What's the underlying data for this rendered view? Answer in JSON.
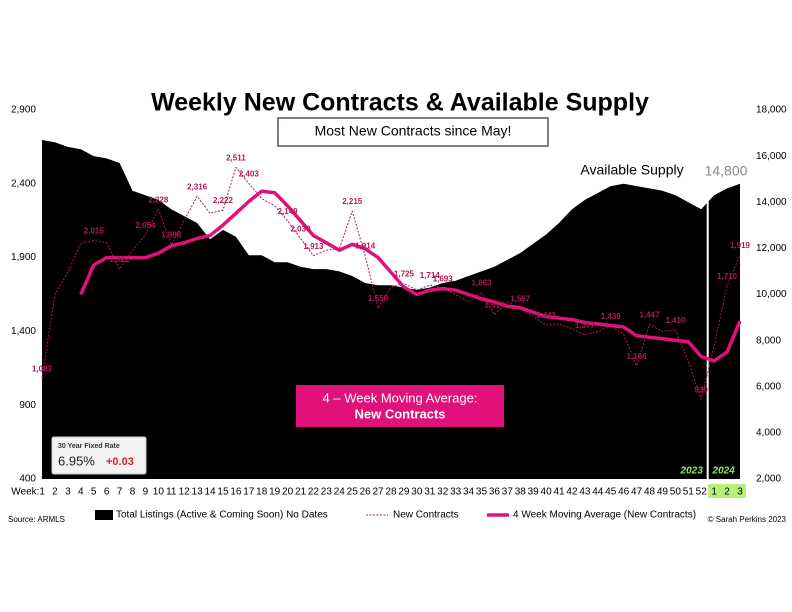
{
  "chart_data": {
    "type": "combo",
    "title": "Weekly New Contracts & Available Supply",
    "subtitle": "Most New Contracts since May!",
    "supply_label": "Available Supply",
    "ma_note": [
      "4 – Week Moving Average:",
      "New Contracts"
    ],
    "rate_box": {
      "title": "30 Year Fixed Rate",
      "rate": "6.95%",
      "change": "+0.03"
    },
    "year_labels": [
      "2023",
      "2024"
    ],
    "source": "Source: ARMLS",
    "credit": "© Sarah Perkins 2023",
    "categories": [
      "Week:1",
      "2",
      "3",
      "4",
      "5",
      "6",
      "7",
      "8",
      "9",
      "10",
      "11",
      "12",
      "13",
      "14",
      "15",
      "16",
      "17",
      "18",
      "19",
      "20",
      "21",
      "22",
      "23",
      "24",
      "25",
      "26",
      "27",
      "28",
      "29",
      "30",
      "31",
      "32",
      "33",
      "34",
      "35",
      "36",
      "37",
      "38",
      "39",
      "40",
      "41",
      "42",
      "43",
      "44",
      "45",
      "46",
      "47",
      "48",
      "49",
      "50",
      "51",
      "52",
      "1",
      "2",
      "3"
    ],
    "ylim": [
      400,
      2900
    ],
    "yticks": [
      400,
      900,
      {
        "value": 1400,
        "label": "1,400"
      },
      {
        "value": 1900,
        "label": "1,900"
      },
      {
        "value": 2400,
        "label": "2,400"
      },
      {
        "value": 2900,
        "label": "2,900"
      }
    ],
    "y2lim": [
      2000,
      18000
    ],
    "y2ticks": [
      {
        "value": 2000,
        "label": "2,000"
      },
      {
        "value": 4000,
        "label": "4,000"
      },
      {
        "value": 6000,
        "label": "6,000"
      },
      {
        "value": 8000,
        "label": "8,000"
      },
      {
        "value": 10000,
        "label": "10,000"
      },
      {
        "value": 12000,
        "label": "12,000"
      },
      {
        "value": 14000,
        "label": "14,000"
      },
      {
        "value": 16000,
        "label": "16,000"
      },
      {
        "value": 18000,
        "label": "18,000"
      }
    ],
    "series": [
      {
        "name": "Total Listings (Active & Coming Soon) No Dates",
        "type": "area",
        "axis": "y2",
        "color": "#000000",
        "values": [
          16700,
          16600,
          16400,
          16300,
          16000,
          15900,
          15700,
          14500,
          14300,
          14100,
          13700,
          13400,
          13100,
          12400,
          12800,
          12500,
          11700,
          11700,
          11400,
          11400,
          11200,
          11100,
          11100,
          11000,
          10800,
          10500,
          10400,
          10400,
          10300,
          10200,
          10300,
          10500,
          10600,
          10800,
          11000,
          11200,
          11500,
          11800,
          12200,
          12600,
          13100,
          13700,
          14100,
          14400,
          14700,
          14800,
          14700,
          14600,
          14500,
          14300,
          14000,
          13700,
          14300,
          14600,
          14800
        ],
        "value_labels": [
          null,
          null,
          null,
          null,
          null,
          null,
          null,
          null,
          null,
          null,
          null,
          null,
          null,
          null,
          null,
          null,
          null,
          null,
          null,
          null,
          null,
          null,
          null,
          null,
          null,
          null,
          null,
          null,
          null,
          null,
          null,
          null,
          null,
          null,
          null,
          null,
          null,
          null,
          null,
          null,
          null,
          null,
          null,
          null,
          null,
          null,
          null,
          null,
          null,
          null,
          null,
          null,
          null,
          null,
          "14,800"
        ]
      },
      {
        "name": "New Contracts",
        "type": "line",
        "style": "dotted",
        "color": "#b0175a",
        "values": [
          1083,
          1650,
          1800,
          2000,
          2015,
          2000,
          1822,
          1950,
          2054,
          2228,
          1988,
          2150,
          2316,
          2200,
          2222,
          2511,
          2403,
          2300,
          2250,
          2149,
          2030,
          1913,
          1950,
          1960,
          2215,
          1914,
          1558,
          1700,
          1725,
          1680,
          1714,
          1693,
          1650,
          1600,
          1663,
          1514,
          1600,
          1557,
          1500,
          1443,
          1450,
          1420,
          1377,
          1400,
          1439,
          1380,
          1166,
          1447,
          1400,
          1410,
          1200,
          939,
          1300,
          1710,
          1919
        ],
        "value_labels": [
          "1,083",
          null,
          null,
          null,
          "2,015",
          null,
          "1,822",
          null,
          "2,054",
          "2,228",
          "1,988",
          null,
          "2,316",
          null,
          "2,222",
          "2,511",
          "2,403",
          null,
          null,
          "2,149",
          "2,030",
          "1,913",
          null,
          null,
          "2,215",
          "1,914",
          "1,558",
          null,
          "1,725",
          null,
          "1,714",
          "1,693",
          null,
          null,
          "1,663",
          "1,514",
          null,
          "1,557",
          null,
          "1,443",
          null,
          null,
          "1,377",
          null,
          "1,439",
          null,
          "1,166",
          "1,447",
          null,
          "1,410",
          null,
          "939",
          null,
          "1,710",
          "1,919"
        ]
      },
      {
        "name": "4 Week Moving Average (New Contracts)",
        "type": "line",
        "style": "solid",
        "color": "#e0117a",
        "values": [
          null,
          null,
          null,
          1650,
          1850,
          1900,
          1900,
          1900,
          1900,
          1930,
          1980,
          2000,
          2030,
          2050,
          2120,
          2200,
          2280,
          2350,
          2340,
          2250,
          2150,
          2050,
          2000,
          1950,
          1990,
          1960,
          1900,
          1800,
          1700,
          1650,
          1680,
          1690,
          1680,
          1650,
          1620,
          1600,
          1570,
          1560,
          1530,
          1500,
          1490,
          1480,
          1460,
          1450,
          1440,
          1430,
          1370,
          1360,
          1350,
          1340,
          1330,
          1230,
          1200,
          1260,
          1470
        ]
      }
    ]
  }
}
